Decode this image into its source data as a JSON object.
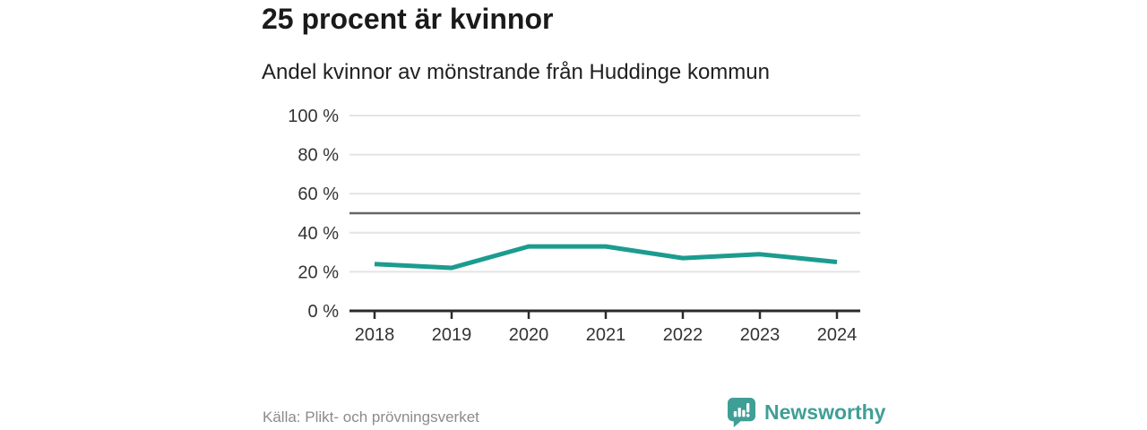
{
  "header": {
    "title": "25 procent är kvinnor",
    "subtitle": "Andel kvinnor av mönstrande från Huddinge kommun"
  },
  "chart_data": {
    "type": "line",
    "categories": [
      "2018",
      "2019",
      "2020",
      "2021",
      "2022",
      "2023",
      "2024"
    ],
    "series": [
      {
        "name": "Andel kvinnor",
        "values": [
          24,
          22,
          33,
          33,
          27,
          29,
          25
        ]
      }
    ],
    "unit": "%",
    "ylim": [
      0,
      100
    ],
    "yticks": [
      0,
      20,
      40,
      60,
      80,
      100
    ],
    "ytick_labels": [
      "0 %",
      "20 %",
      "40 %",
      "60 %",
      "80 %",
      "100 %"
    ],
    "reference_line": 50,
    "grid": true,
    "legend": "none",
    "title": "25 procent är kvinnor",
    "xlabel": "",
    "ylabel": ""
  },
  "footer": {
    "source": "Källa: Plikt- och prövningsverket",
    "brand": "Newsworthy"
  },
  "colors": {
    "line": "#1b9c8e",
    "grid": "#e4e4e4",
    "reference": "#666666",
    "axis": "#2b2b2b",
    "tick_text": "#333333",
    "brand_teal": "#3f9f96"
  }
}
